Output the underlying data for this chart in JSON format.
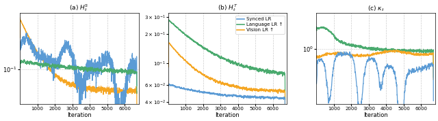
{
  "title_a": "(a) $H_t^S$",
  "title_b": "(b) $H_t^T$",
  "title_c": "(c) $\\kappa_t$",
  "xlabel": "Iteration",
  "legend_labels": [
    "Synced LR",
    "Language LR ↑",
    "Vision LR ↑"
  ],
  "colors": {
    "synced": "#5b9bd5",
    "language": "#4aaa6e",
    "vision": "#f5a623"
  },
  "figsize": [
    6.4,
    1.78
  ],
  "dpi": 100
}
